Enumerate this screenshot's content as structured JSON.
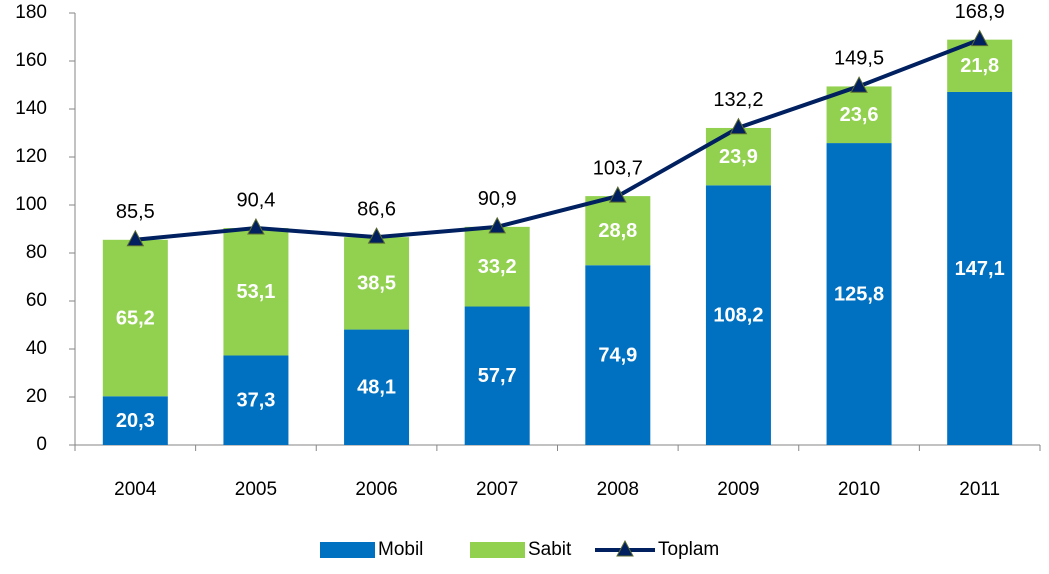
{
  "chart_data": {
    "type": "bar",
    "stacked": true,
    "categories": [
      "2004",
      "2005",
      "2006",
      "2007",
      "2008",
      "2009",
      "2010",
      "2011"
    ],
    "series": [
      {
        "name": "Mobil",
        "type": "bar",
        "color": "#0070c0",
        "values": [
          20.3,
          37.3,
          48.1,
          57.7,
          74.9,
          108.2,
          125.8,
          147.1
        ],
        "value_labels": [
          "20,3",
          "37,3",
          "48,1",
          "57,7",
          "74,9",
          "108,2",
          "125,8",
          "147,1"
        ]
      },
      {
        "name": "Sabit",
        "type": "bar",
        "color": "#92d050",
        "values": [
          65.2,
          53.1,
          38.5,
          33.2,
          28.8,
          23.9,
          23.6,
          21.8
        ],
        "value_labels": [
          "65,2",
          "53,1",
          "38,5",
          "33,2",
          "28,8",
          "23,9",
          "23,6",
          "21,8"
        ]
      },
      {
        "name": "Toplam",
        "type": "line",
        "color": "#002060",
        "values": [
          85.5,
          90.4,
          86.6,
          90.9,
          103.7,
          132.2,
          149.5,
          168.9
        ],
        "value_labels": [
          "85,5",
          "90,4",
          "86,6",
          "90,9",
          "103,7",
          "132,2",
          "149,5",
          "168,9"
        ]
      }
    ],
    "ylim": [
      0,
      180
    ],
    "yticks": [
      0,
      20,
      40,
      60,
      80,
      100,
      120,
      140,
      160,
      180
    ],
    "grid": false,
    "legend": "bottom"
  }
}
